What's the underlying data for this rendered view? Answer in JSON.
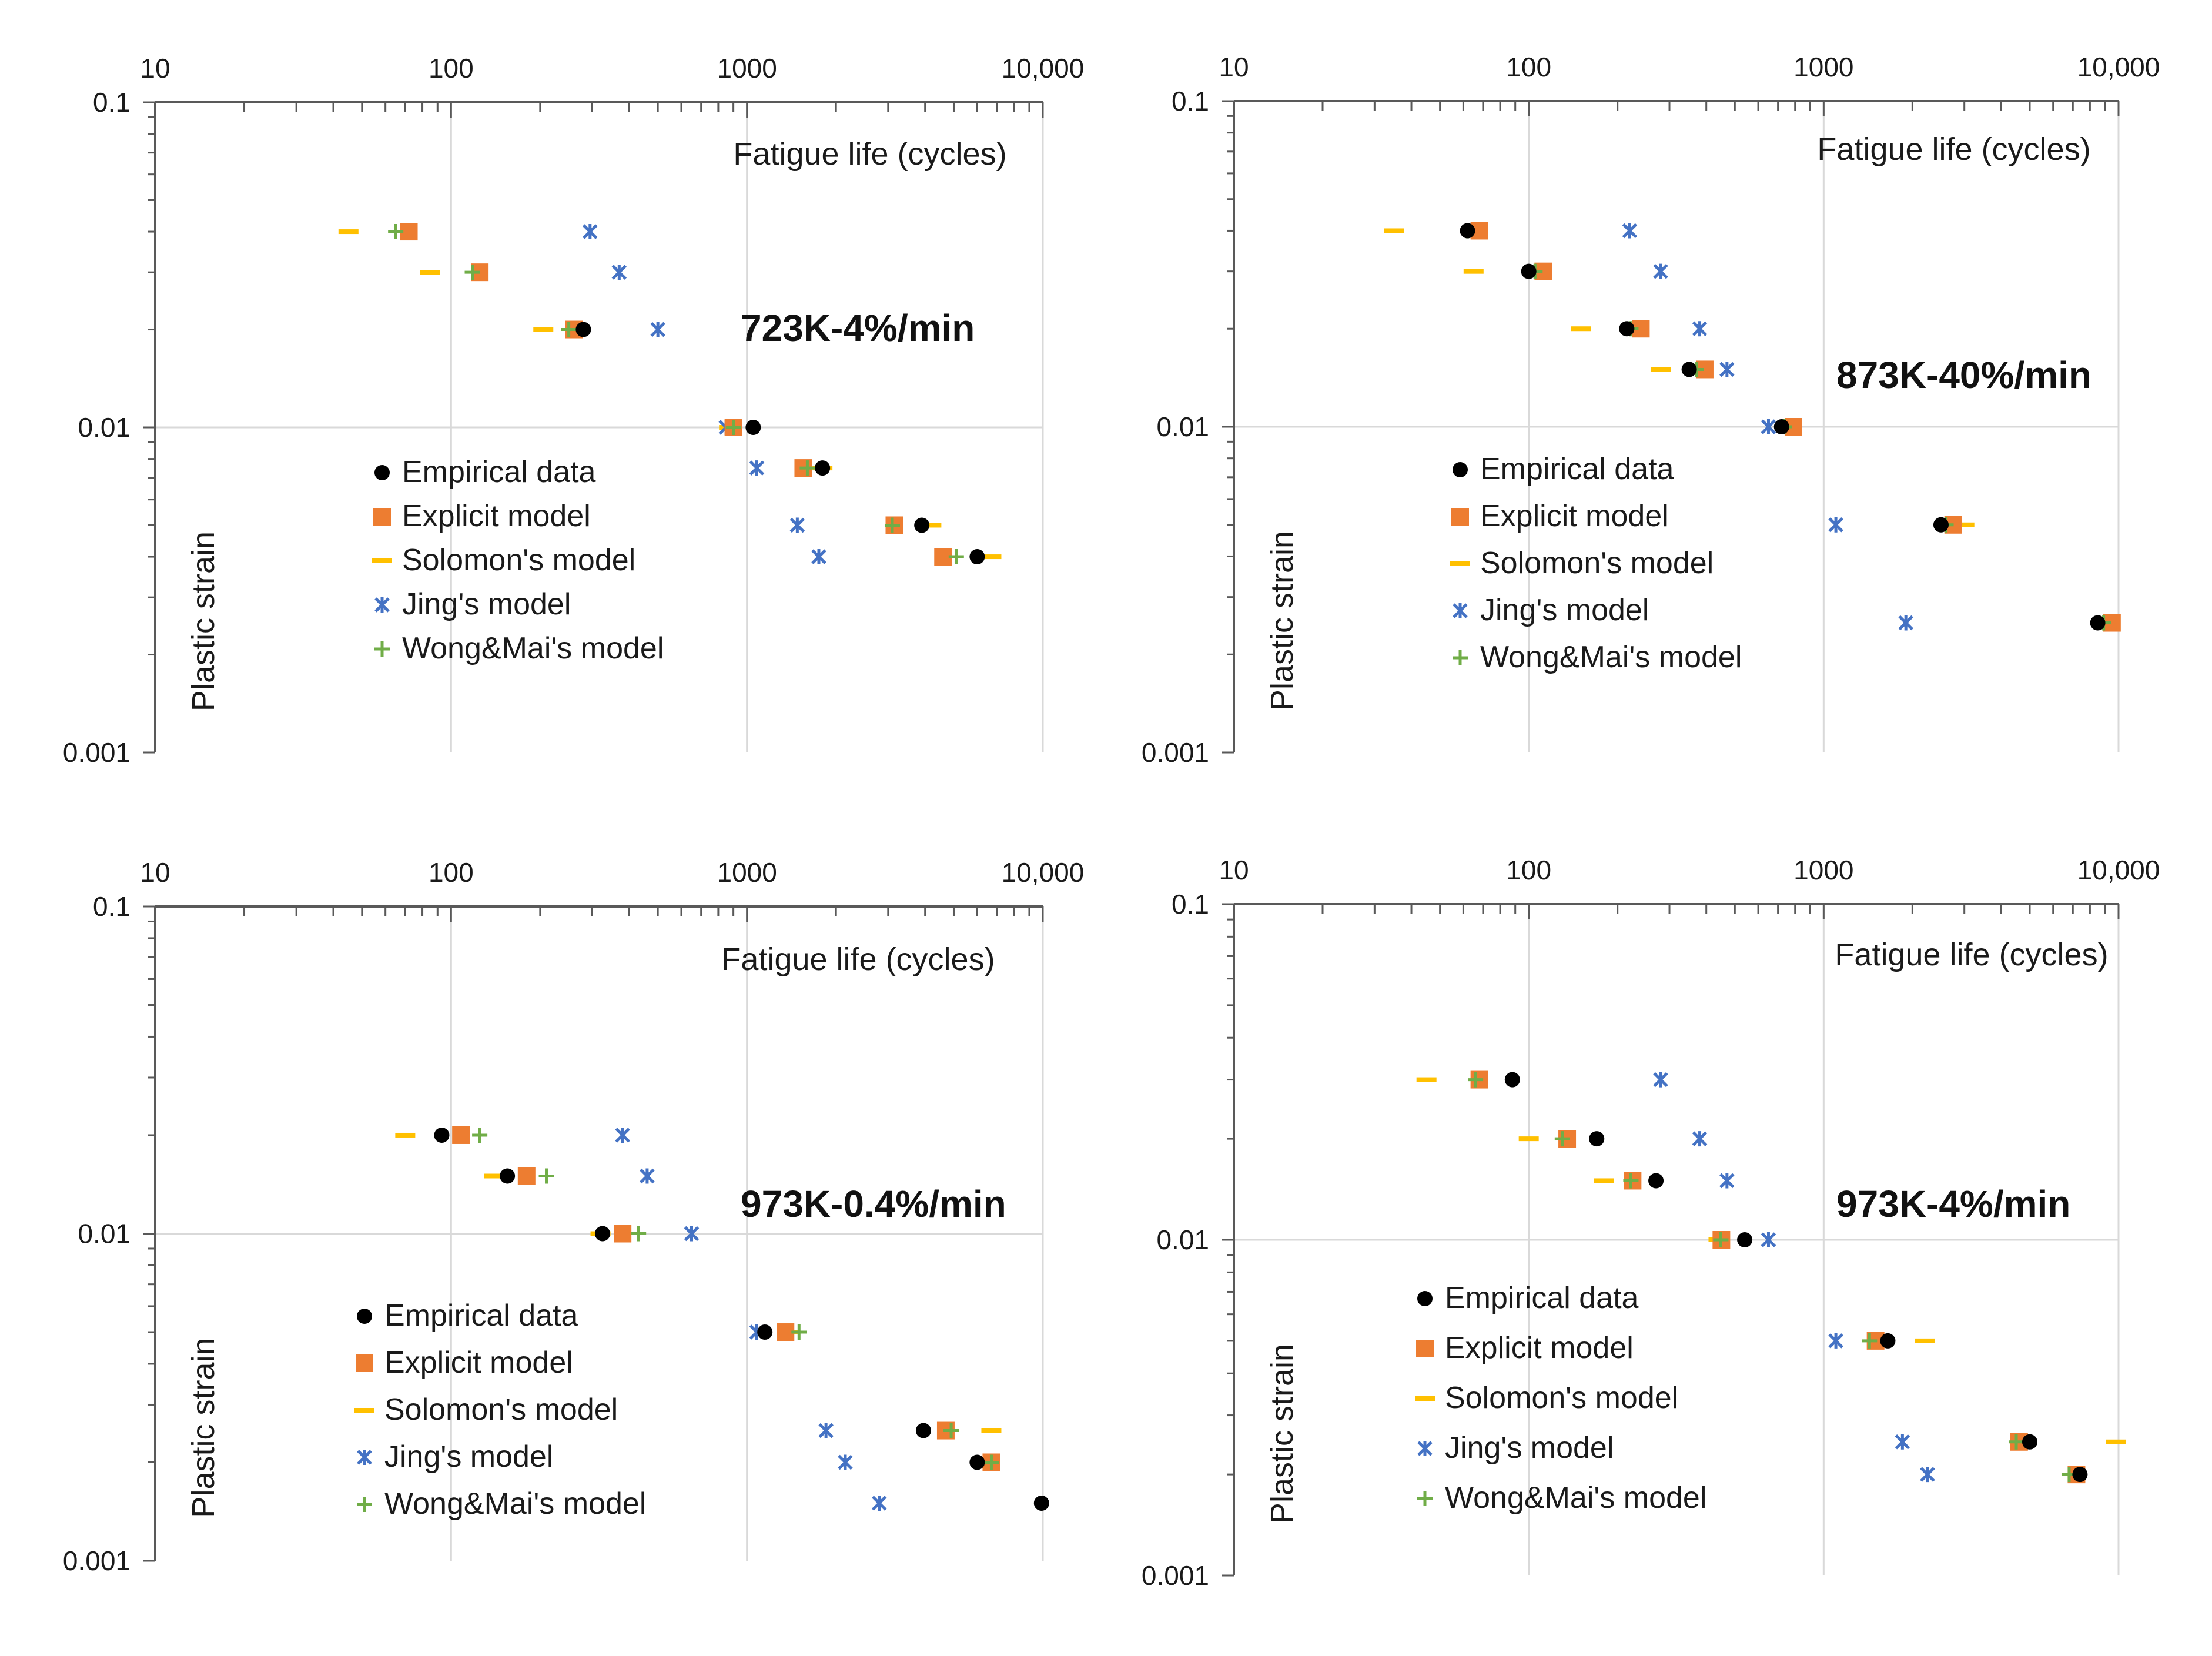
{
  "chart_data": [
    {
      "type": "scatter",
      "title": "723K-4%/min",
      "xlabel": "Fatigue life (cycles)",
      "ylabel": "Plastic strain",
      "xscale": "log",
      "yscale": "log",
      "xlim": [
        10,
        10000
      ],
      "ylim": [
        0.001,
        0.1
      ],
      "xtick_labels": [
        "10",
        "100",
        "1000",
        "10,000"
      ],
      "ytick_labels": [
        "0.1",
        "0.01",
        "0.001"
      ],
      "legend_position": "center-left",
      "series": [
        {
          "name": "Empirical data",
          "marker": "circle",
          "color": "#000000",
          "points": [
            [
              280,
              0.02
            ],
            [
              1050,
              0.01
            ],
            [
              1800,
              0.0075
            ],
            [
              3900,
              0.005
            ],
            [
              6000,
              0.004
            ]
          ]
        },
        {
          "name": "Explicit model",
          "marker": "square",
          "color": "#ED7D31",
          "points": [
            [
              72,
              0.04
            ],
            [
              125,
              0.03
            ],
            [
              260,
              0.02
            ],
            [
              900,
              0.01
            ],
            [
              1550,
              0.0075
            ],
            [
              3150,
              0.005
            ],
            [
              4600,
              0.004
            ]
          ]
        },
        {
          "name": "Solomon's model",
          "marker": "dash",
          "color": "#FFC000",
          "points": [
            [
              45,
              0.04
            ],
            [
              85,
              0.03
            ],
            [
              205,
              0.02
            ],
            [
              870,
              0.01
            ],
            [
              1800,
              0.0075
            ],
            [
              4200,
              0.005
            ],
            [
              6700,
              0.004
            ]
          ]
        },
        {
          "name": "Jing's model",
          "marker": "x",
          "color": "#4472C4",
          "points": [
            [
              295,
              0.04
            ],
            [
              370,
              0.03
            ],
            [
              500,
              0.02
            ],
            [
              850,
              0.01
            ],
            [
              1080,
              0.0075
            ],
            [
              1480,
              0.005
            ],
            [
              1750,
              0.004
            ]
          ]
        },
        {
          "name": "Wong&Mai's model",
          "marker": "plus",
          "color": "#70AD47",
          "points": [
            [
              65,
              0.04
            ],
            [
              118,
              0.03
            ],
            [
              250,
              0.02
            ],
            [
              900,
              0.01
            ],
            [
              1600,
              0.0075
            ],
            [
              3100,
              0.005
            ],
            [
              5100,
              0.004
            ]
          ]
        }
      ]
    },
    {
      "type": "scatter",
      "title": "873K-40%/min",
      "xlabel": "Fatigue life (cycles)",
      "ylabel": "Plastic strain",
      "xscale": "log",
      "yscale": "log",
      "xlim": [
        10,
        10000
      ],
      "ylim": [
        0.001,
        0.1
      ],
      "xtick_labels": [
        "10",
        "100",
        "1000",
        "10,000"
      ],
      "ytick_labels": [
        "0.1",
        "0.01",
        "0.001"
      ],
      "legend_position": "center-left",
      "series": [
        {
          "name": "Empirical data",
          "marker": "circle",
          "color": "#000000",
          "points": [
            [
              62,
              0.04
            ],
            [
              100,
              0.03
            ],
            [
              215,
              0.02
            ],
            [
              350,
              0.015
            ],
            [
              720,
              0.01
            ],
            [
              2500,
              0.005
            ],
            [
              8500,
              0.0025
            ]
          ]
        },
        {
          "name": "Explicit model",
          "marker": "square",
          "color": "#ED7D31",
          "points": [
            [
              68,
              0.04
            ],
            [
              112,
              0.03
            ],
            [
              240,
              0.02
            ],
            [
              395,
              0.015
            ],
            [
              790,
              0.01
            ],
            [
              2750,
              0.005
            ],
            [
              9500,
              0.0025
            ]
          ]
        },
        {
          "name": "Solomon's model",
          "marker": "dash",
          "color": "#FFC000",
          "points": [
            [
              35,
              0.04
            ],
            [
              65,
              0.03
            ],
            [
              150,
              0.02
            ],
            [
              280,
              0.015
            ],
            [
              760,
              0.01
            ],
            [
              3000,
              0.005
            ],
            [
              9300,
              0.0025
            ]
          ]
        },
        {
          "name": "Jing's model",
          "marker": "x",
          "color": "#4472C4",
          "points": [
            [
              220,
              0.04
            ],
            [
              280,
              0.03
            ],
            [
              380,
              0.02
            ],
            [
              470,
              0.015
            ],
            [
              650,
              0.01
            ],
            [
              1100,
              0.005
            ],
            [
              1900,
              0.0025
            ]
          ]
        },
        {
          "name": "Wong&Mai's model",
          "marker": "plus",
          "color": "#70AD47",
          "points": [
            [
              62,
              0.04
            ],
            [
              105,
              0.03
            ],
            [
              222,
              0.02
            ],
            [
              370,
              0.015
            ],
            [
              735,
              0.01
            ],
            [
              2600,
              0.005
            ],
            [
              8900,
              0.0025
            ]
          ]
        }
      ]
    },
    {
      "type": "scatter",
      "title": "973K-0.4%/min",
      "xlabel": "Fatigue life (cycles)",
      "ylabel": "Plastic strain",
      "xscale": "log",
      "yscale": "log",
      "xlim": [
        10,
        10000
      ],
      "ylim": [
        0.001,
        0.1
      ],
      "xtick_labels": [
        "10",
        "100",
        "1000",
        "10,000"
      ],
      "ytick_labels": [
        "0.1",
        "0.01",
        "0.001"
      ],
      "legend_position": "center-left",
      "series": [
        {
          "name": "Empirical data",
          "marker": "circle",
          "color": "#000000",
          "points": [
            [
              93,
              0.02
            ],
            [
              155,
              0.015
            ],
            [
              325,
              0.01
            ],
            [
              1150,
              0.005
            ],
            [
              3950,
              0.0025
            ],
            [
              6000,
              0.002
            ],
            [
              9900,
              0.0015
            ]
          ]
        },
        {
          "name": "Explicit model",
          "marker": "square",
          "color": "#ED7D31",
          "points": [
            [
              108,
              0.02
            ],
            [
              180,
              0.015
            ],
            [
              380,
              0.01
            ],
            [
              1350,
              0.005
            ],
            [
              4700,
              0.0025
            ],
            [
              6700,
              0.002
            ]
          ]
        },
        {
          "name": "Solomon's model",
          "marker": "dash",
          "color": "#FFC000",
          "points": [
            [
              70,
              0.02
            ],
            [
              140,
              0.015
            ],
            [
              320,
              0.01
            ],
            [
              1400,
              0.005
            ],
            [
              6700,
              0.0025
            ],
            [
              6300,
              0.002
            ]
          ]
        },
        {
          "name": "Jing's model",
          "marker": "x",
          "color": "#4472C4",
          "points": [
            [
              380,
              0.02
            ],
            [
              460,
              0.015
            ],
            [
              650,
              0.01
            ],
            [
              1080,
              0.005
            ],
            [
              1850,
              0.0025
            ],
            [
              2150,
              0.002
            ],
            [
              2800,
              0.0015
            ]
          ]
        },
        {
          "name": "Wong&Mai's model",
          "marker": "plus",
          "color": "#70AD47",
          "points": [
            [
              125,
              0.02
            ],
            [
              210,
              0.015
            ],
            [
              430,
              0.01
            ],
            [
              1500,
              0.005
            ],
            [
              4900,
              0.0025
            ],
            [
              6700,
              0.002
            ]
          ]
        }
      ]
    },
    {
      "type": "scatter",
      "title": "973K-4%/min",
      "xlabel": "Fatigue life (cycles)",
      "ylabel": "Plastic strain",
      "xscale": "log",
      "yscale": "log",
      "xlim": [
        10,
        10000
      ],
      "ylim": [
        0.001,
        0.1
      ],
      "xtick_labels": [
        "10",
        "100",
        "1000",
        "10,000"
      ],
      "ytick_labels": [
        "0.1",
        "0.01",
        "0.001"
      ],
      "legend_position": "center-left",
      "series": [
        {
          "name": "Empirical data",
          "marker": "circle",
          "color": "#000000",
          "points": [
            [
              88,
              0.03
            ],
            [
              170,
              0.02
            ],
            [
              270,
              0.015
            ],
            [
              540,
              0.01
            ],
            [
              1650,
              0.005
            ],
            [
              5000,
              0.0025
            ],
            [
              7400,
              0.002
            ]
          ]
        },
        {
          "name": "Explicit model",
          "marker": "square",
          "color": "#ED7D31",
          "points": [
            [
              68,
              0.03
            ],
            [
              135,
              0.02
            ],
            [
              225,
              0.015
            ],
            [
              450,
              0.01
            ],
            [
              1500,
              0.005
            ],
            [
              4600,
              0.0025
            ],
            [
              7200,
              0.002
            ]
          ]
        },
        {
          "name": "Solomon's model",
          "marker": "dash",
          "color": "#FFC000",
          "points": [
            [
              45,
              0.03
            ],
            [
              100,
              0.02
            ],
            [
              180,
              0.015
            ],
            [
              440,
              0.01
            ],
            [
              2200,
              0.005
            ],
            [
              9800,
              0.0025
            ]
          ]
        },
        {
          "name": "Jing's model",
          "marker": "x",
          "color": "#4472C4",
          "points": [
            [
              280,
              0.03
            ],
            [
              380,
              0.02
            ],
            [
              470,
              0.015
            ],
            [
              650,
              0.01
            ],
            [
              1100,
              0.005
            ],
            [
              1850,
              0.0025
            ],
            [
              2250,
              0.002
            ]
          ]
        },
        {
          "name": "Wong&Mai's model",
          "marker": "plus",
          "color": "#70AD47",
          "points": [
            [
              66,
              0.03
            ],
            [
              130,
              0.02
            ],
            [
              222,
              0.015
            ],
            [
              448,
              0.01
            ],
            [
              1430,
              0.005
            ],
            [
              4500,
              0.0025
            ],
            [
              6800,
              0.002
            ]
          ]
        }
      ]
    }
  ]
}
